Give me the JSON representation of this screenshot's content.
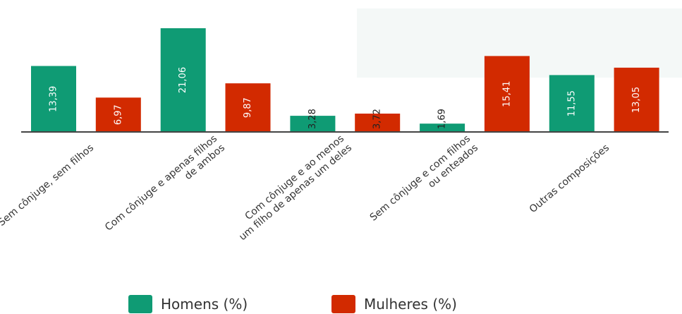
{
  "chart_data": {
    "type": "bar",
    "categories": [
      [
        "Sem cônjuge, sem filhos"
      ],
      [
        "Com cônjuge e apenas filhos",
        "de ambos"
      ],
      [
        "Com cônjuge e ao menos",
        "um filho de apenas um deles"
      ],
      [
        "Sem cônjuge e com filhos",
        "ou enteados"
      ],
      [
        "Outras composições"
      ]
    ],
    "series": [
      {
        "name": "Homens (%)",
        "color": "#0f9b74",
        "values": [
          13.39,
          21.06,
          3.28,
          1.69,
          11.55
        ]
      },
      {
        "name": "Mulheres (%)",
        "color": "#d22a00",
        "values": [
          6.97,
          9.87,
          3.72,
          15.41,
          13.05
        ]
      }
    ],
    "value_labels": [
      [
        "13,39",
        "21,06",
        "3,28",
        "1,69",
        "11,55"
      ],
      [
        "6,97",
        "9,87",
        "3,72",
        "15,41",
        "13,05"
      ]
    ],
    "ylim": [
      0,
      21.06
    ],
    "grid": false,
    "legend_position": "bottom-center"
  }
}
